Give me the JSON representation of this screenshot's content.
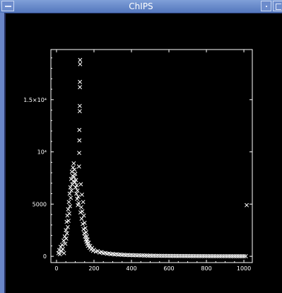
{
  "window": {
    "title": "ChIPS"
  },
  "colors": {
    "titlebar": "#5f80c6",
    "background": "#000000",
    "marker": "#ffffff"
  },
  "icons": {
    "window_menu": "window-menu-icon",
    "minimize": "minimize-icon",
    "maximize": "maximize-icon"
  },
  "chart_data": {
    "type": "scatter",
    "marker": "x",
    "title": "",
    "xlabel": "",
    "ylabel": "",
    "xlim": [
      -30,
      1045
    ],
    "ylim": [
      -600,
      19800
    ],
    "grid": false,
    "legend": "none",
    "x_ticks": [
      {
        "value": 0,
        "label": "0"
      },
      {
        "value": 200,
        "label": "200"
      },
      {
        "value": 400,
        "label": "400"
      },
      {
        "value": 600,
        "label": "600"
      },
      {
        "value": 800,
        "label": "800"
      },
      {
        "value": 1000,
        "label": "1000"
      }
    ],
    "y_ticks": [
      {
        "value": 0,
        "label": "0"
      },
      {
        "value": 5000,
        "label": "5000"
      },
      {
        "value": 10000,
        "label": "10⁴"
      },
      {
        "value": 15000,
        "label": "1.5×10⁴"
      }
    ],
    "points": [
      [
        10,
        300
      ],
      [
        14,
        600
      ],
      [
        18,
        200
      ],
      [
        22,
        900
      ],
      [
        26,
        500
      ],
      [
        30,
        1100
      ],
      [
        34,
        700
      ],
      [
        38,
        1500
      ],
      [
        40,
        300
      ],
      [
        44,
        1900
      ],
      [
        47,
        1200
      ],
      [
        50,
        2500
      ],
      [
        52,
        1700
      ],
      [
        54,
        3300
      ],
      [
        56,
        2200
      ],
      [
        58,
        3900
      ],
      [
        60,
        2800
      ],
      [
        62,
        4500
      ],
      [
        64,
        3400
      ],
      [
        66,
        5200
      ],
      [
        68,
        4100
      ],
      [
        70,
        6000
      ],
      [
        72,
        4800
      ],
      [
        74,
        6600
      ],
      [
        76,
        5600
      ],
      [
        78,
        7400
      ],
      [
        80,
        6300
      ],
      [
        82,
        8100
      ],
      [
        84,
        6900
      ],
      [
        86,
        7700
      ],
      [
        88,
        8500
      ],
      [
        90,
        7200
      ],
      [
        92,
        8900
      ],
      [
        94,
        7600
      ],
      [
        96,
        8300
      ],
      [
        98,
        7100
      ],
      [
        100,
        7900
      ],
      [
        102,
        6600
      ],
      [
        104,
        7300
      ],
      [
        106,
        6000
      ],
      [
        108,
        6800
      ],
      [
        110,
        5500
      ],
      [
        112,
        6300
      ],
      [
        114,
        4900
      ],
      [
        116,
        5700
      ],
      [
        118,
        5100
      ],
      [
        120,
        8600
      ],
      [
        121,
        9900
      ],
      [
        122,
        11100
      ],
      [
        122,
        12100
      ],
      [
        124,
        13900
      ],
      [
        124,
        14400
      ],
      [
        125,
        16200
      ],
      [
        125,
        16700
      ],
      [
        126,
        18400
      ],
      [
        126,
        18800
      ],
      [
        128,
        4200
      ],
      [
        130,
        6900
      ],
      [
        132,
        4700
      ],
      [
        134,
        3600
      ],
      [
        136,
        5900
      ],
      [
        138,
        4300
      ],
      [
        140,
        3100
      ],
      [
        142,
        5200
      ],
      [
        144,
        2600
      ],
      [
        146,
        3900
      ],
      [
        148,
        2200
      ],
      [
        150,
        3200
      ],
      [
        152,
        1900
      ],
      [
        154,
        2700
      ],
      [
        156,
        1600
      ],
      [
        158,
        2300
      ],
      [
        160,
        1400
      ],
      [
        162,
        1900
      ],
      [
        164,
        1200
      ],
      [
        166,
        1600
      ],
      [
        168,
        1000
      ],
      [
        172,
        1300
      ],
      [
        176,
        800
      ],
      [
        180,
        1000
      ],
      [
        185,
        650
      ],
      [
        190,
        800
      ],
      [
        195,
        520
      ],
      [
        200,
        620
      ],
      [
        210,
        450
      ],
      [
        220,
        500
      ],
      [
        230,
        360
      ],
      [
        240,
        400
      ],
      [
        250,
        300
      ],
      [
        260,
        320
      ],
      [
        270,
        250
      ],
      [
        280,
        270
      ],
      [
        290,
        210
      ],
      [
        300,
        230
      ],
      [
        310,
        180
      ],
      [
        320,
        200
      ],
      [
        330,
        160
      ],
      [
        340,
        170
      ],
      [
        350,
        140
      ],
      [
        360,
        150
      ],
      [
        370,
        120
      ],
      [
        380,
        130
      ],
      [
        390,
        110
      ],
      [
        400,
        120
      ],
      [
        410,
        100
      ],
      [
        420,
        110
      ],
      [
        430,
        90
      ],
      [
        440,
        100
      ],
      [
        450,
        80
      ],
      [
        460,
        90
      ],
      [
        470,
        70
      ],
      [
        480,
        80
      ],
      [
        490,
        60
      ],
      [
        500,
        70
      ],
      [
        510,
        55
      ],
      [
        520,
        60
      ],
      [
        530,
        50
      ],
      [
        540,
        55
      ],
      [
        550,
        45
      ],
      [
        560,
        50
      ],
      [
        570,
        40
      ],
      [
        580,
        45
      ],
      [
        590,
        38
      ],
      [
        600,
        42
      ],
      [
        610,
        35
      ],
      [
        620,
        38
      ],
      [
        630,
        32
      ],
      [
        640,
        35
      ],
      [
        650,
        30
      ],
      [
        660,
        33
      ],
      [
        670,
        28
      ],
      [
        680,
        30
      ],
      [
        690,
        26
      ],
      [
        700,
        28
      ],
      [
        710,
        24
      ],
      [
        720,
        26
      ],
      [
        730,
        22
      ],
      [
        740,
        24
      ],
      [
        750,
        20
      ],
      [
        760,
        22
      ],
      [
        770,
        19
      ],
      [
        780,
        21
      ],
      [
        790,
        18
      ],
      [
        800,
        20
      ],
      [
        810,
        17
      ],
      [
        820,
        19
      ],
      [
        830,
        16
      ],
      [
        840,
        18
      ],
      [
        850,
        15
      ],
      [
        860,
        17
      ],
      [
        870,
        14
      ],
      [
        880,
        16
      ],
      [
        890,
        13
      ],
      [
        900,
        15
      ],
      [
        910,
        12
      ],
      [
        920,
        14
      ],
      [
        930,
        11
      ],
      [
        940,
        13
      ],
      [
        950,
        10
      ],
      [
        960,
        12
      ],
      [
        970,
        10
      ],
      [
        980,
        11
      ],
      [
        990,
        9
      ],
      [
        1000,
        10
      ],
      [
        1010,
        9
      ],
      [
        1015,
        4900
      ]
    ]
  }
}
